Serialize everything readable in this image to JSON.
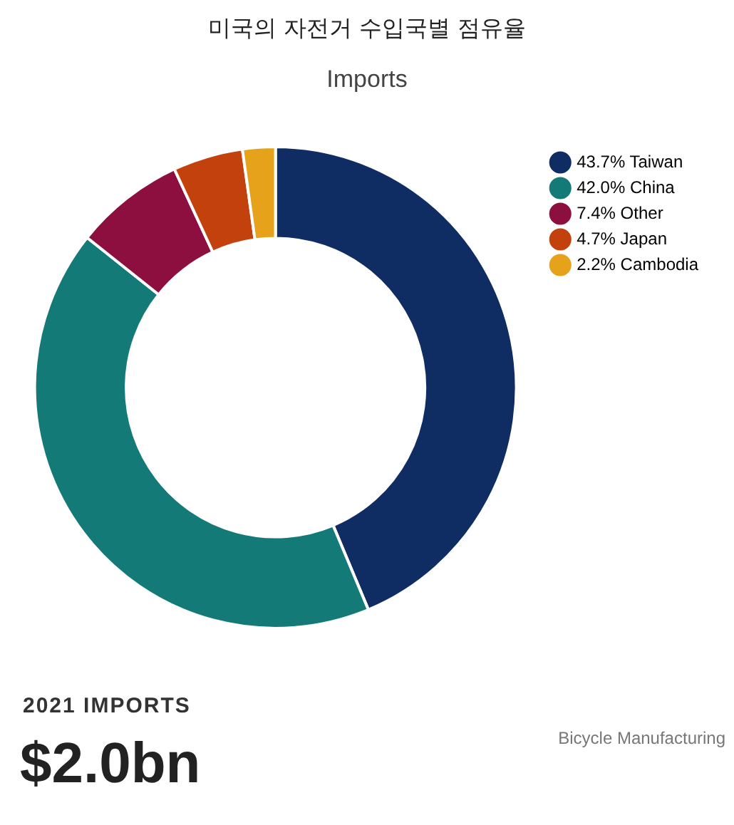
{
  "chart_data": {
    "type": "donut",
    "title": "미국의 자전거 수입국별 점유율",
    "subtitle": "Imports",
    "categories": [
      "Taiwan",
      "China",
      "Other",
      "Japan",
      "Cambodia"
    ],
    "values": [
      43.7,
      42.0,
      7.4,
      4.7,
      2.2
    ],
    "colors": [
      "#0f2d63",
      "#147a78",
      "#8c0f3f",
      "#c2410c",
      "#e6a21a"
    ],
    "value_labels": [
      "43.7%",
      "42.0%",
      "7.4%",
      "4.7%",
      "2.2%"
    ],
    "legend": "right",
    "annotations": [
      "2021 IMPORTS",
      "$2.0bn",
      "Bicycle Manufacturing"
    ]
  }
}
